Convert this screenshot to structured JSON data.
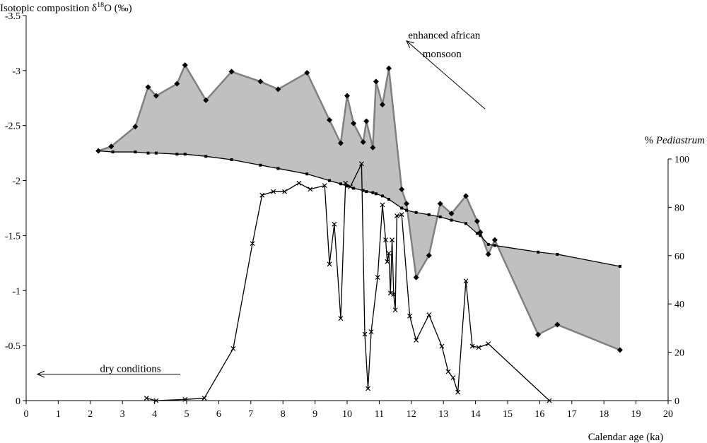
{
  "chart_data": {
    "type": "line",
    "xlabel": "Calendar age (ka)",
    "xlim": [
      0,
      20
    ],
    "x_ticks": [
      "0",
      "1",
      "2",
      "3",
      "4",
      "5",
      "6",
      "7",
      "8",
      "9",
      "10",
      "11",
      "12",
      "13",
      "14",
      "15",
      "16",
      "17",
      "18",
      "19",
      "20"
    ],
    "ylabel_left": "Isotopic composition δ18O (‰)",
    "ylabel_left_parts": {
      "pre": "Isotopic composition δ",
      "sup": "18",
      "post": "O (‰)"
    },
    "ylim_left": [
      0,
      -3.5
    ],
    "y_left_ticks": [
      "0",
      "-0.5",
      "-1",
      "-1.5",
      "-2",
      "-2.5",
      "-3",
      "-3.5"
    ],
    "y_left_tick_values": [
      0,
      -0.5,
      -1,
      -1.5,
      -2,
      -2.5,
      -3,
      -3.5
    ],
    "ylabel_right": "% Pediastrum",
    "ylabel_right_parts": {
      "pre": "% ",
      "ital": "Pediastrum"
    },
    "ylim_right": [
      0,
      100
    ],
    "y_right_ticks": [
      "0",
      "20",
      "40",
      "60",
      "80",
      "100"
    ],
    "y_right_tick_values": [
      0,
      20,
      40,
      60,
      80,
      100
    ],
    "grid": false,
    "series": [
      {
        "axis": "left",
        "marker": "diamond",
        "color": "#808080",
        "x": [
          2.25,
          2.65,
          3.4,
          3.8,
          4.05,
          4.7,
          4.95,
          5.6,
          6.4,
          7.3,
          7.85,
          8.75,
          9.45,
          9.8,
          10.0,
          10.2,
          10.5,
          10.6,
          10.8,
          10.9,
          11.1,
          11.3,
          11.7,
          11.85,
          12.15,
          12.55,
          12.9,
          13.25,
          13.7,
          14.05,
          14.15,
          14.4,
          14.6,
          15.95,
          16.55,
          18.5
        ],
        "y": [
          -2.27,
          -2.31,
          -2.49,
          -2.85,
          -2.77,
          -2.88,
          -3.05,
          -2.73,
          -2.99,
          -2.9,
          -2.83,
          -2.98,
          -2.55,
          -2.34,
          -2.77,
          -2.52,
          -2.35,
          -2.54,
          -2.3,
          -2.9,
          -2.69,
          -3.02,
          -1.92,
          -1.79,
          -1.12,
          -1.32,
          -1.79,
          -1.7,
          -1.86,
          -1.63,
          -1.53,
          -1.33,
          -1.46,
          -0.6,
          -0.69,
          -0.46
        ]
      },
      {
        "axis": "left",
        "marker": "square",
        "color": "#000000",
        "x": [
          2.25,
          2.7,
          3.4,
          3.8,
          4.05,
          4.7,
          4.95,
          5.6,
          6.4,
          7.3,
          7.85,
          8.75,
          9.45,
          9.8,
          10.0,
          10.2,
          10.5,
          10.6,
          10.8,
          10.9,
          11.1,
          11.3,
          11.7,
          11.85,
          12.15,
          12.55,
          12.9,
          13.25,
          13.7,
          14.05,
          14.15,
          14.4,
          14.6,
          15.95,
          16.55,
          18.5
        ],
        "y": [
          -2.27,
          -2.26,
          -2.26,
          -2.25,
          -2.25,
          -2.24,
          -2.24,
          -2.22,
          -2.19,
          -2.14,
          -2.11,
          -2.06,
          -2.0,
          -1.97,
          -1.95,
          -1.93,
          -1.91,
          -1.9,
          -1.89,
          -1.88,
          -1.86,
          -1.83,
          -1.75,
          -1.73,
          -1.71,
          -1.69,
          -1.67,
          -1.64,
          -1.61,
          -1.52,
          -1.5,
          -1.42,
          -1.41,
          -1.35,
          -1.33,
          -1.22
        ]
      },
      {
        "axis": "right",
        "marker": "x",
        "color": "#000000",
        "x": [
          3.75,
          4.05,
          4.95,
          5.55,
          6.45,
          7.05,
          7.35,
          7.7,
          8.05,
          8.5,
          8.85,
          9.3,
          9.45,
          9.6,
          9.8,
          9.95,
          10.1,
          10.45,
          10.55,
          10.65,
          10.75,
          10.95,
          11.1,
          11.2,
          11.25,
          11.3,
          11.35,
          11.4,
          11.45,
          11.5,
          11.55,
          11.7,
          11.95,
          12.15,
          12.55,
          12.95,
          13.15,
          13.3,
          13.45,
          13.7,
          13.9,
          14.1,
          14.4,
          16.3
        ],
        "y": [
          1,
          0,
          0.5,
          1,
          21.5,
          65,
          85,
          86.5,
          86.5,
          90,
          87.5,
          89,
          56.5,
          73,
          34,
          90,
          88.5,
          98,
          27.5,
          5,
          28.5,
          51,
          81,
          66.5,
          57.5,
          61,
          44.5,
          66.5,
          44,
          37.5,
          76.5,
          77,
          35,
          25,
          35.5,
          22.5,
          12,
          9.5,
          3.5,
          49.5,
          22.5,
          22,
          23.5,
          0
        ]
      }
    ],
    "annotations": [
      {
        "text": "enhanced african",
        "x": 11.9,
        "y": -3.29
      },
      {
        "text": "monsoon",
        "x": 12.35,
        "y": -3.12
      },
      {
        "text": "dry conditions",
        "x": 2.3,
        "y": -0.26
      }
    ],
    "arrows": [
      {
        "from": [
          14.3,
          -2.65
        ],
        "to": [
          11.85,
          -3.27
        ]
      },
      {
        "from": [
          4.8,
          -0.24
        ],
        "to": [
          0.35,
          -0.24
        ]
      }
    ]
  }
}
